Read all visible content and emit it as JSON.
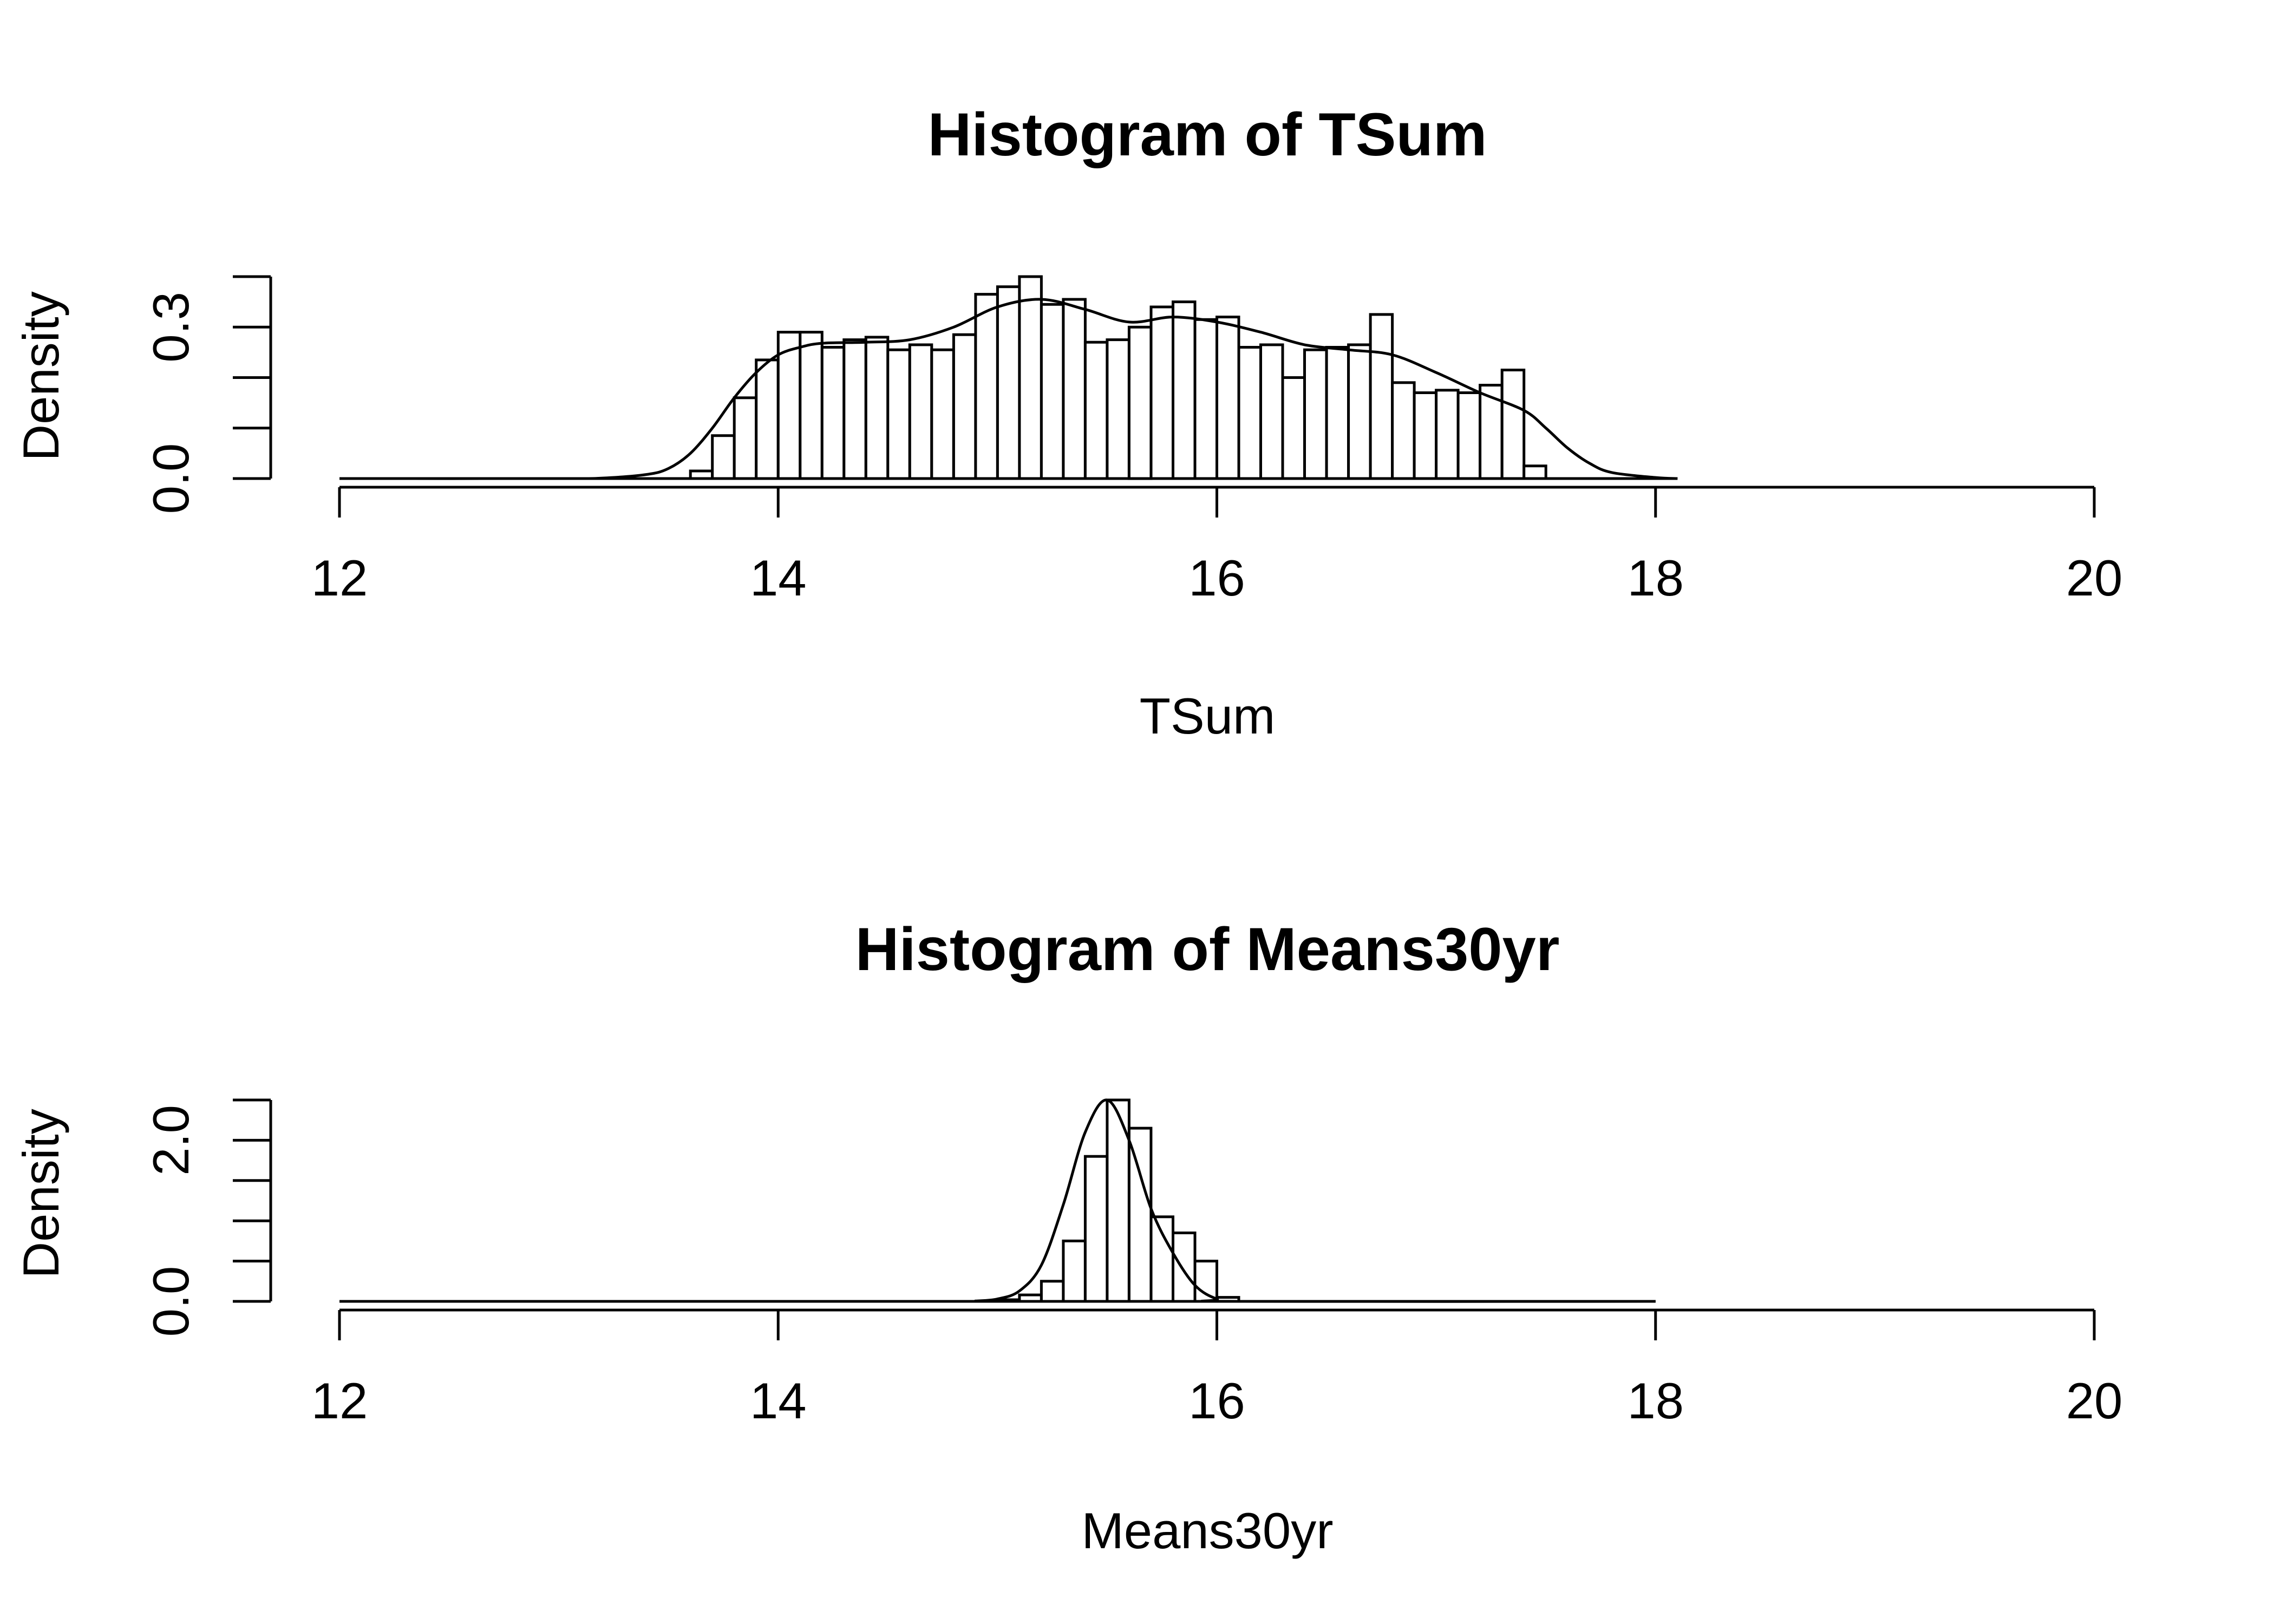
{
  "chart_data": [
    {
      "type": "bar",
      "subtype": "histogram-with-density",
      "title": "Histogram of TSum",
      "xlabel": "TSum",
      "ylabel": "Density",
      "xlim": [
        12,
        20
      ],
      "ylim": [
        0,
        0.4
      ],
      "x_ticks": [
        12,
        14,
        16,
        18,
        20
      ],
      "x_tick_labels": [
        "12",
        "14",
        "16",
        "18",
        "20"
      ],
      "y_ticks": [
        0.0,
        0.1,
        0.2,
        0.3,
        0.4
      ],
      "y_tick_labels": [
        "0.0",
        "",
        "",
        "0.3",
        ""
      ],
      "density_range": [
        12,
        18.1
      ],
      "bin_start": 13.6,
      "bin_width": 0.1,
      "values": [
        0.015,
        0.085,
        0.16,
        0.235,
        0.29,
        0.29,
        0.26,
        0.275,
        0.28,
        0.255,
        0.265,
        0.255,
        0.285,
        0.365,
        0.38,
        0.4,
        0.345,
        0.355,
        0.27,
        0.275,
        0.3,
        0.34,
        0.35,
        0.315,
        0.32,
        0.26,
        0.265,
        0.2,
        0.255,
        0.26,
        0.265,
        0.325,
        0.19,
        0.17,
        0.175,
        0.17,
        0.185,
        0.215,
        0.025
      ],
      "density_curve": {
        "x": [
          12.0,
          13.0,
          13.2,
          13.4,
          13.5,
          13.6,
          13.7,
          13.8,
          13.9,
          14.0,
          14.1,
          14.2,
          14.4,
          14.6,
          14.8,
          15.0,
          15.2,
          15.4,
          15.6,
          15.8,
          16.0,
          16.2,
          16.4,
          16.6,
          16.8,
          17.0,
          17.2,
          17.4,
          17.5,
          17.6,
          17.7,
          17.8,
          18.0,
          18.1
        ],
        "y": [
          0.0,
          0.0,
          0.001,
          0.008,
          0.02,
          0.05,
          0.1,
          0.16,
          0.21,
          0.245,
          0.26,
          0.268,
          0.27,
          0.275,
          0.3,
          0.34,
          0.355,
          0.335,
          0.31,
          0.32,
          0.31,
          0.29,
          0.265,
          0.255,
          0.245,
          0.21,
          0.17,
          0.135,
          0.1,
          0.06,
          0.03,
          0.012,
          0.002,
          0.0
        ]
      }
    },
    {
      "type": "bar",
      "subtype": "histogram-with-density",
      "title": "Histogram of Means30yr",
      "xlabel": "Means30yr",
      "ylabel": "Density",
      "xlim": [
        12,
        20
      ],
      "ylim": [
        0,
        2.5
      ],
      "x_ticks": [
        12,
        14,
        16,
        18,
        20
      ],
      "x_tick_labels": [
        "12",
        "14",
        "16",
        "18",
        "20"
      ],
      "y_ticks": [
        0.0,
        0.5,
        1.0,
        1.5,
        2.0,
        2.5
      ],
      "y_tick_labels": [
        "0.0",
        "",
        "",
        "",
        "2.0",
        ""
      ],
      "density_range": [
        12,
        18
      ],
      "bin_start": 15.0,
      "bin_width": 0.1,
      "values": [
        0.02,
        0.08,
        0.25,
        0.75,
        1.8,
        2.5,
        2.15,
        1.05,
        0.85,
        0.5,
        0.05
      ],
      "density_curve": {
        "x": [
          12.0,
          14.8,
          14.9,
          15.0,
          15.1,
          15.2,
          15.3,
          15.4,
          15.5,
          15.6,
          15.7,
          15.8,
          15.9,
          16.0,
          16.1,
          18.0
        ],
        "y": [
          0.0,
          0.0,
          0.005,
          0.03,
          0.13,
          0.45,
          1.2,
          2.1,
          2.5,
          2.0,
          1.15,
          0.6,
          0.2,
          0.03,
          0.0,
          0.0
        ]
      }
    }
  ]
}
